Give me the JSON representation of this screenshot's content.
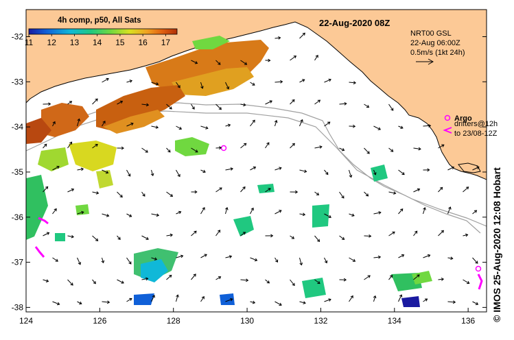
{
  "title": "22-Aug-2020 08Z",
  "colorbar": {
    "label": "4h comp, p50, All Sats",
    "ticks": [
      "11",
      "12",
      "13",
      "14",
      "15",
      "16",
      "17"
    ],
    "range": [
      11,
      17.5
    ],
    "colors": [
      "#1a1aa0",
      "#1060d8",
      "#10b8d8",
      "#20c880",
      "#70d840",
      "#d8e020",
      "#f0a020",
      "#e06010",
      "#b03008"
    ]
  },
  "legend": {
    "line1": "NRT00 GSL",
    "line2": "22-Aug 06:00Z",
    "line3": "0.5m/s (1kt 24h)"
  },
  "argo": {
    "label": "Argo",
    "drifters_line1": "drifters@12h",
    "drifters_line2": "to 23/08-12Z",
    "color": "#ff00ff"
  },
  "credit": "© IMOS 25-Aug-2020 12:08 Hobart",
  "axes": {
    "x_ticks": [
      "124",
      "126",
      "128",
      "130",
      "132",
      "134",
      "136"
    ],
    "y_ticks": [
      "-32",
      "-33",
      "-34",
      "-35",
      "-36",
      "-37",
      "-38"
    ],
    "lon_range": [
      124,
      136.5
    ],
    "lat_range": [
      -31.4,
      -38.1
    ]
  },
  "colors": {
    "land": "#fcc996",
    "ocean": "#ffffff",
    "isobath": "#a0a0a0",
    "arrow": "#000000"
  }
}
